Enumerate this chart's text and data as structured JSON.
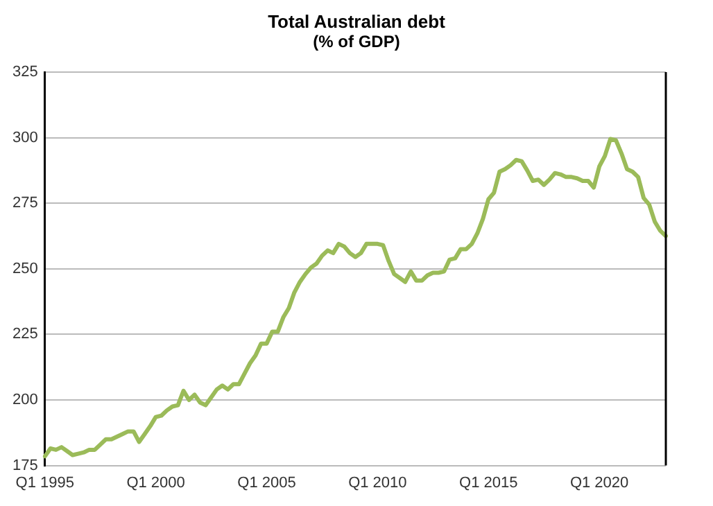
{
  "chart_data": {
    "type": "line",
    "title": "Total Australian debt",
    "subtitle": "(% of GDP)",
    "categories": [
      "Q1 1995",
      null,
      null,
      null,
      null,
      null,
      null,
      null,
      null,
      null,
      null,
      null,
      null,
      null,
      null,
      null,
      null,
      null,
      null,
      null,
      "Q1 2000",
      null,
      null,
      null,
      null,
      null,
      null,
      null,
      null,
      null,
      null,
      null,
      null,
      null,
      null,
      null,
      null,
      null,
      null,
      null,
      "Q1 2005",
      null,
      null,
      null,
      null,
      null,
      null,
      null,
      null,
      null,
      null,
      null,
      null,
      null,
      null,
      null,
      null,
      null,
      null,
      null,
      "Q1 2010",
      null,
      null,
      null,
      null,
      null,
      null,
      null,
      null,
      null,
      null,
      null,
      null,
      null,
      null,
      null,
      null,
      null,
      null,
      null,
      "Q1 2015",
      null,
      null,
      null,
      null,
      null,
      null,
      null,
      null,
      null,
      null,
      null,
      null,
      null,
      null,
      null,
      null,
      null,
      null,
      null,
      "Q1 2020",
      null,
      null,
      null,
      null,
      null,
      null,
      null,
      null,
      null,
      null,
      null,
      null
    ],
    "series": [
      {
        "color": "#9bbb59",
        "values": [
          178.5,
          181.5,
          181,
          182,
          180.5,
          179,
          179.5,
          180,
          181,
          181,
          183,
          185,
          185,
          186,
          187,
          188,
          188,
          184,
          187,
          190,
          193.5,
          194,
          196,
          197.5,
          198,
          203.5,
          200,
          202,
          199,
          198,
          201,
          204,
          205.5,
          204,
          206,
          206,
          210,
          214,
          217,
          221.5,
          221.5,
          226,
          226,
          231.5,
          235,
          241,
          245,
          248,
          250.5,
          252,
          255,
          257,
          256,
          259.5,
          258.5,
          256,
          254.5,
          256,
          259.5,
          259.5,
          259.5,
          259,
          253,
          248,
          246.5,
          245,
          249,
          245.5,
          245.5,
          247.5,
          248.5,
          248.5,
          249,
          253.5,
          254,
          257.5,
          257.5,
          259.5,
          263.5,
          269,
          276.5,
          279,
          287,
          288,
          289.5,
          291.5,
          291,
          287.5,
          283.5,
          284,
          282,
          284,
          286.5,
          286,
          285,
          285,
          284.5,
          283.5,
          283.5,
          281,
          289,
          293,
          299.5,
          299,
          294,
          288,
          287,
          285,
          277,
          274.5,
          268,
          264.5,
          262.5
        ]
      }
    ],
    "ylim": [
      175,
      325
    ],
    "yticks": [
      175,
      200,
      225,
      250,
      275,
      300,
      325
    ],
    "grid": "y",
    "legend": false,
    "marker": "none",
    "line_style": "solid"
  }
}
